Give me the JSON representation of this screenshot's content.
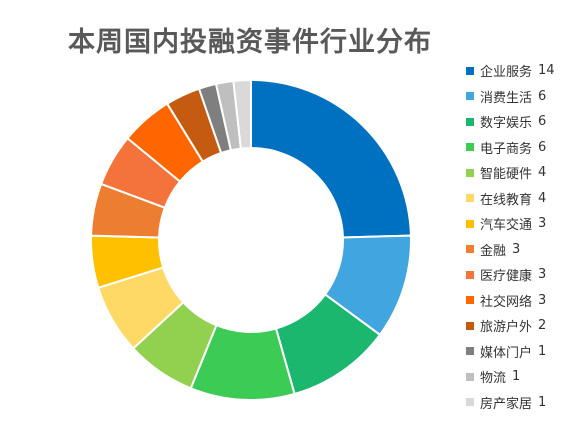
{
  "chart_data": {
    "type": "pie",
    "subtype": "donut",
    "title": "本周国内投融资事件行业分布",
    "legend_position": "right",
    "categories": [
      "企业服务",
      "消费生活",
      "数字娱乐",
      "电子商务",
      "智能硬件",
      "在线教育",
      "汽车交通",
      "金融",
      "医疗健康",
      "社交网络",
      "旅游户外",
      "媒体门户",
      "物流",
      "房产家居"
    ],
    "values": [
      14,
      6,
      6,
      6,
      4,
      4,
      3,
      3,
      3,
      3,
      2,
      1,
      1,
      1
    ],
    "colors": [
      "#0070C0",
      "#41A5E0",
      "#1BB76E",
      "#3CCB55",
      "#92D050",
      "#FFD966",
      "#FFC000",
      "#ED7D31",
      "#F4733A",
      "#FF6600",
      "#C55A11",
      "#7F7F7F",
      "#BFBFBF",
      "#D9D9D9"
    ]
  }
}
